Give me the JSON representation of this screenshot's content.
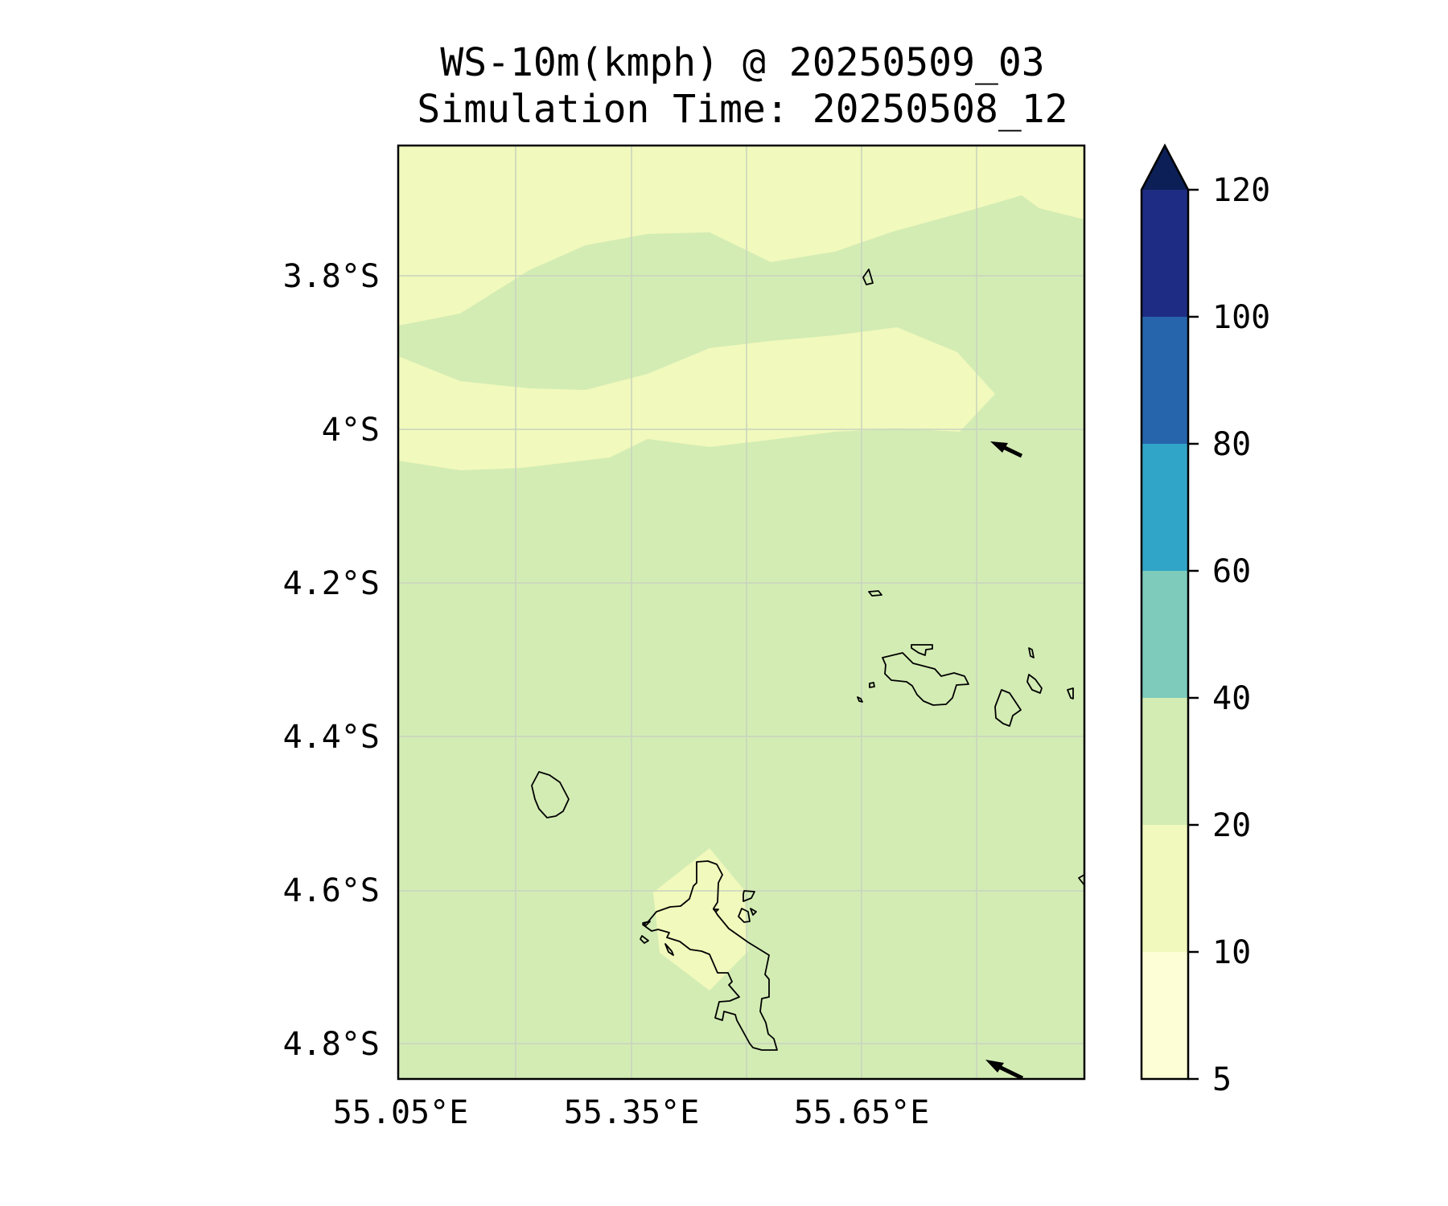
{
  "title": {
    "line1": "WS-10m(kmph) @ 20250509_03",
    "line2": "Simulation Time: 20250508_12"
  },
  "map": {
    "lat_ticks": [
      "3.8°S",
      "4°S",
      "4.2°S",
      "4.4°S",
      "4.6°S",
      "4.8°S"
    ],
    "lon_ticks": [
      "55.05°E",
      "55.35°E",
      "55.65°E"
    ],
    "lon_range": [
      55.05,
      55.95
    ],
    "lat_range": [
      -4.84,
      -3.63
    ],
    "gridlines": true,
    "fill_colors": {
      "band_10_20": "#f1f9bc",
      "band_20_40": "#d3ecb4",
      "coastline": "#000000",
      "grid": "#c8d3bf"
    },
    "wind_arrows": [
      {
        "lon": 55.83,
        "lat": -4.03,
        "direction": "toward northwest"
      },
      {
        "lon": 55.83,
        "lat": -4.82,
        "direction": "toward northwest"
      }
    ]
  },
  "colorbar": {
    "labels": [
      "5",
      "10",
      "20",
      "40",
      "60",
      "80",
      "100",
      "120"
    ],
    "levels": [
      5,
      10,
      20,
      40,
      60,
      80,
      100,
      120
    ],
    "colors": [
      "#fdfed6",
      "#f1f9bc",
      "#d3ecb4",
      "#7ecbbc",
      "#31a5c7",
      "#2665ab",
      "#1f2c84"
    ],
    "extend_color": "#0c1f56",
    "extend": "max"
  }
}
